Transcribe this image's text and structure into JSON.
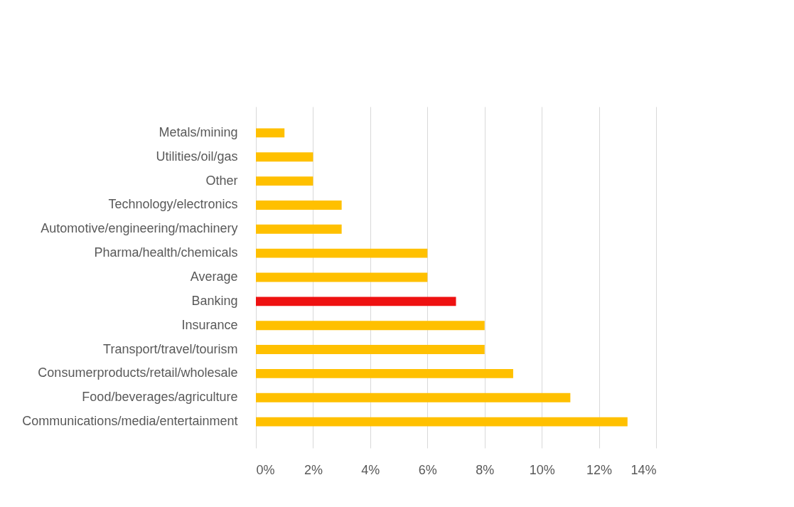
{
  "chart_data": {
    "type": "bar",
    "orientation": "horizontal",
    "categories": [
      "Metals/mining",
      "Utilities/oil/gas",
      "Other",
      "Technology/electronics",
      "Automotive/engineering/machinery",
      "Pharma/health/chemicals",
      "Average",
      "Banking",
      "Insurance",
      "Transport/travel/tourism",
      "Consumerproducts/retail/wholesale",
      "Food/beverages/agriculture",
      "Communications/media/entertainment"
    ],
    "values": [
      1,
      2,
      2,
      3,
      3,
      6,
      6,
      7,
      8,
      8,
      9,
      11,
      13
    ],
    "colors": [
      "#ffc000",
      "#ffc000",
      "#ffc000",
      "#ffc000",
      "#ffc000",
      "#ffc000",
      "#ffc000",
      "#ee1111",
      "#ffc000",
      "#ffc000",
      "#ffc000",
      "#ffc000",
      "#ffc000"
    ],
    "xlim": [
      0,
      14
    ],
    "xticks": [
      {
        "value": 0,
        "label": "0%"
      },
      {
        "value": 2,
        "label": "2%"
      },
      {
        "value": 4,
        "label": "4%"
      },
      {
        "value": 6,
        "label": "6%"
      },
      {
        "value": 8,
        "label": "8%"
      },
      {
        "value": 10,
        "label": "10%"
      },
      {
        "value": 12,
        "label": "12%"
      },
      {
        "value": 14,
        "label": "14%"
      }
    ],
    "grid": true
  }
}
